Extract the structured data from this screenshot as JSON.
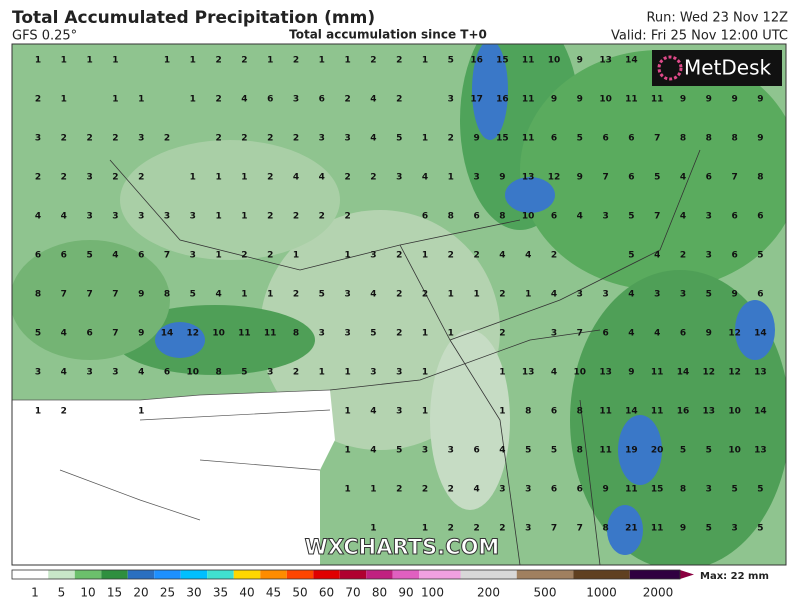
{
  "header": {
    "title": "Total Accumulated Precipitation (mm)",
    "model": "GFS 0.25°",
    "subtitle": "Total accumulation since T+0",
    "run": "Run: Wed 23 Nov 12Z",
    "valid": "Valid: Fri 25 Nov 12:00 UTC"
  },
  "logo": "MetDesk",
  "watermark": "WXCHARTS.COM",
  "grid": {
    "rows": [
      [
        1,
        1,
        1,
        1,
        null,
        1,
        1,
        2,
        2,
        1,
        2,
        1,
        1,
        2,
        2,
        1,
        5,
        16,
        15,
        11,
        10,
        9,
        13,
        14,
        null,
        null,
        null,
        null,
        null
      ],
      [
        2,
        1,
        null,
        1,
        1,
        null,
        1,
        2,
        4,
        6,
        3,
        6,
        2,
        4,
        2,
        null,
        3,
        17,
        16,
        11,
        9,
        9,
        10,
        11,
        11,
        9,
        9,
        9,
        9
      ],
      [
        3,
        2,
        2,
        2,
        3,
        2,
        null,
        2,
        2,
        2,
        2,
        3,
        3,
        4,
        5,
        1,
        2,
        9,
        15,
        11,
        6,
        5,
        6,
        6,
        7,
        8,
        8,
        8,
        9
      ],
      [
        2,
        2,
        3,
        2,
        2,
        null,
        1,
        1,
        1,
        2,
        4,
        4,
        2,
        2,
        3,
        4,
        1,
        3,
        9,
        13,
        12,
        9,
        7,
        6,
        5,
        4,
        6,
        7,
        8
      ],
      [
        4,
        4,
        3,
        3,
        3,
        3,
        3,
        1,
        1,
        2,
        2,
        2,
        2,
        null,
        null,
        6,
        8,
        6,
        8,
        10,
        6,
        4,
        3,
        5,
        7,
        4,
        3,
        6,
        6
      ],
      [
        6,
        6,
        5,
        4,
        6,
        7,
        3,
        1,
        2,
        2,
        1,
        null,
        1,
        3,
        2,
        1,
        2,
        2,
        4,
        4,
        2,
        null,
        null,
        5,
        4,
        2,
        3,
        6,
        5
      ],
      [
        8,
        7,
        7,
        7,
        9,
        8,
        5,
        4,
        1,
        1,
        2,
        5,
        3,
        4,
        2,
        2,
        1,
        1,
        2,
        1,
        4,
        3,
        3,
        4,
        3,
        3,
        5,
        9,
        6
      ],
      [
        5,
        4,
        6,
        7,
        9,
        14,
        12,
        10,
        11,
        11,
        8,
        3,
        3,
        5,
        2,
        1,
        1,
        null,
        2,
        null,
        3,
        7,
        6,
        4,
        4,
        6,
        9,
        12,
        14
      ],
      [
        3,
        4,
        3,
        3,
        4,
        6,
        10,
        8,
        5,
        3,
        2,
        1,
        1,
        3,
        3,
        1,
        null,
        null,
        1,
        13,
        4,
        10,
        13,
        9,
        11,
        14,
        12,
        12,
        13
      ],
      [
        1,
        2,
        null,
        null,
        1,
        null,
        null,
        null,
        null,
        null,
        null,
        null,
        1,
        4,
        3,
        1,
        null,
        null,
        1,
        8,
        6,
        8,
        11,
        14,
        11,
        16,
        13,
        10,
        14
      ],
      [
        null,
        null,
        null,
        null,
        null,
        null,
        null,
        null,
        null,
        null,
        null,
        null,
        1,
        4,
        5,
        3,
        3,
        6,
        4,
        5,
        5,
        8,
        11,
        19,
        20,
        5,
        5,
        10,
        13
      ],
      [
        null,
        null,
        null,
        null,
        null,
        null,
        null,
        null,
        null,
        null,
        null,
        null,
        1,
        1,
        2,
        2,
        2,
        4,
        3,
        3,
        6,
        6,
        9,
        11,
        15,
        8,
        3,
        5,
        5
      ],
      [
        null,
        null,
        null,
        null,
        null,
        null,
        null,
        null,
        null,
        null,
        null,
        null,
        null,
        1,
        null,
        1,
        2,
        2,
        2,
        3,
        7,
        7,
        8,
        21,
        11,
        9,
        5,
        3,
        5
      ]
    ]
  },
  "colorbar": {
    "labels": [
      1,
      5,
      10,
      15,
      20,
      25,
      30,
      35,
      40,
      45,
      50,
      60,
      70,
      80,
      90,
      100,
      200,
      500,
      1000,
      2000
    ],
    "max": "Max: 22 mm"
  }
}
